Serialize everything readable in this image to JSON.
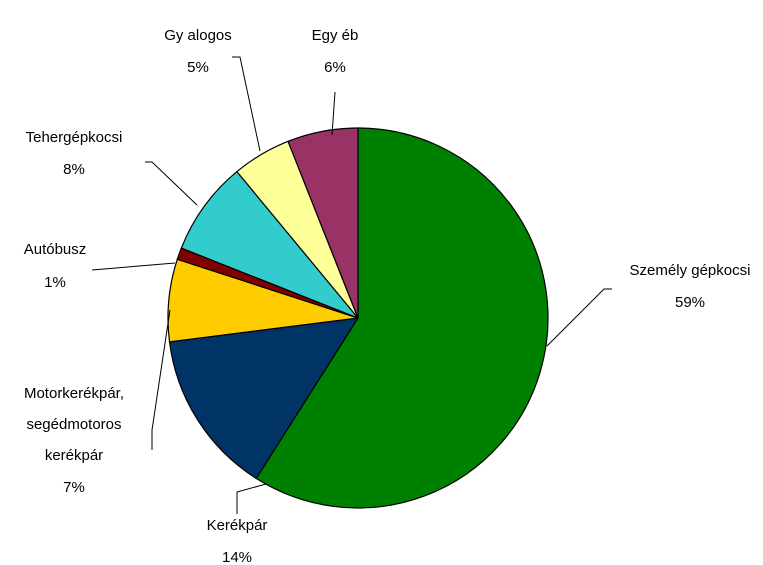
{
  "chart_data": {
    "type": "pie",
    "title": "",
    "start_angle_deg": 0,
    "direction": "clockwise",
    "slices": [
      {
        "label": "Személy gépkocsi",
        "pct_label": "59%",
        "value": 59,
        "color": "#008000"
      },
      {
        "label": "Kerékpár",
        "pct_label": "14%",
        "value": 14,
        "color": "#003366"
      },
      {
        "label": [
          "Motorkerékpár,",
          "segédmotoros",
          "kerékpár"
        ],
        "pct_label": "7%",
        "value": 7,
        "color": "#FFCC00"
      },
      {
        "label": "Autóbusz",
        "pct_label": "1%",
        "value": 1,
        "color": "#800000"
      },
      {
        "label": "Tehergépkocsi",
        "pct_label": "8%",
        "value": 8,
        "color": "#33CCCC"
      },
      {
        "label": "Gy alogos",
        "pct_label": "5%",
        "value": 5,
        "color": "#FFFF99"
      },
      {
        "label": "Egy éb",
        "pct_label": "6%",
        "value": 6,
        "color": "#993366"
      }
    ]
  }
}
